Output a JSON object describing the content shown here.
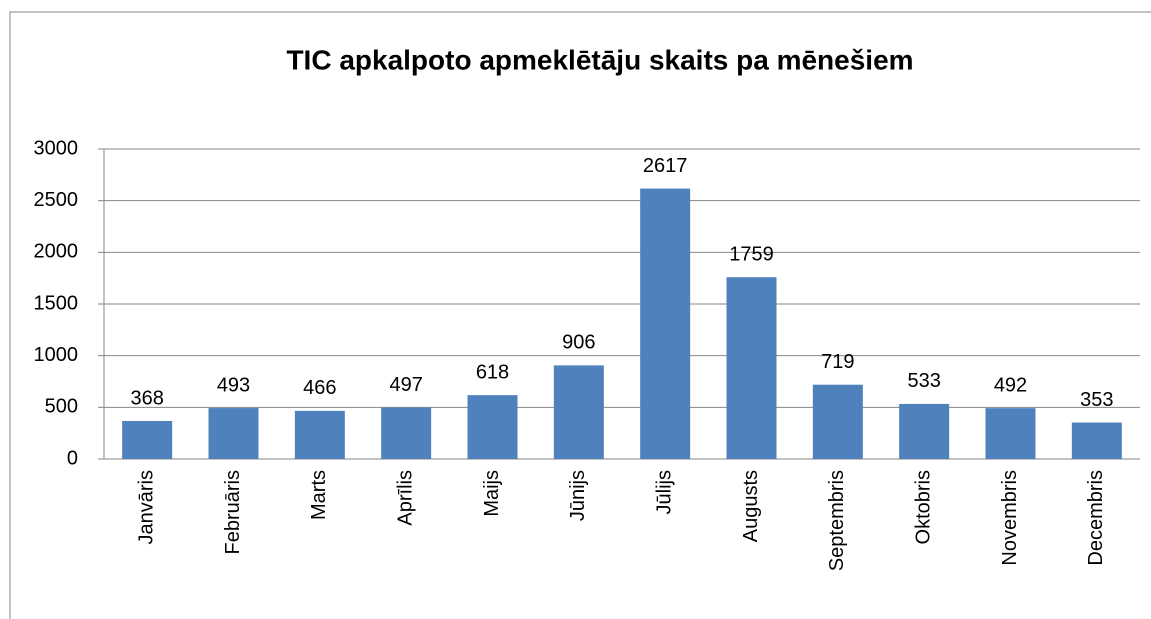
{
  "chart_data": {
    "type": "bar",
    "title": "TIC apkalpoto apmeklētāju skaits pa mēnešiem",
    "categories": [
      "Janvāris",
      "Februāris",
      "Marts",
      "Aprīlis",
      "Maijs",
      "Jūnijs",
      "Jūlijs",
      "Augusts",
      "Septembris",
      "Oktobris",
      "Novembris",
      "Decembris"
    ],
    "values": [
      368,
      493,
      466,
      497,
      618,
      906,
      2617,
      1759,
      719,
      533,
      492,
      353
    ],
    "color": "#4f81bd",
    "ylim": [
      0,
      3000
    ],
    "yticks": [
      0,
      500,
      1000,
      1500,
      2000,
      2500,
      3000
    ],
    "grid": true
  }
}
